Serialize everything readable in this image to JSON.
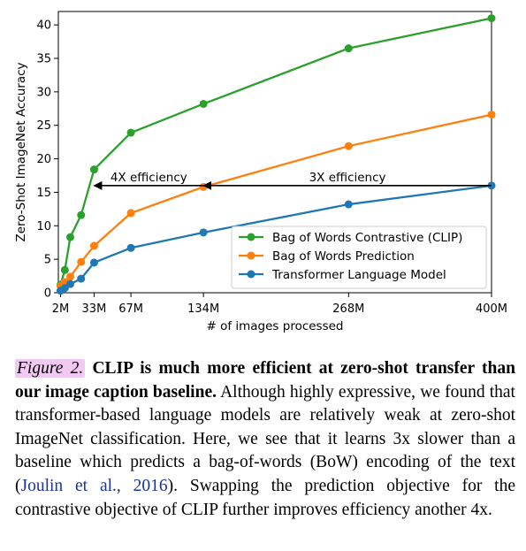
{
  "chart_data": {
    "type": "line",
    "xlabel": "# of images processed",
    "ylabel": "Zero-Shot ImageNet Accuracy",
    "xlim": [
      0,
      400
    ],
    "ylim": [
      0,
      42
    ],
    "x_ticks": [
      {
        "value": 2,
        "label": "2M"
      },
      {
        "value": 33,
        "label": "33M"
      },
      {
        "value": 67,
        "label": "67M"
      },
      {
        "value": 134,
        "label": "134M"
      },
      {
        "value": 268,
        "label": "268M"
      },
      {
        "value": 400,
        "label": "400M"
      }
    ],
    "y_ticks": [
      0,
      5,
      10,
      15,
      20,
      25,
      30,
      35,
      40
    ],
    "legend_position": "lower-right",
    "series": [
      {
        "name": "Bag of Words Contrastive (CLIP)",
        "color": "#2ca02c",
        "points": [
          [
            2,
            1.2
          ],
          [
            6,
            3.4
          ],
          [
            11,
            8.3
          ],
          [
            21,
            11.6
          ],
          [
            33,
            18.4
          ],
          [
            67,
            23.9
          ],
          [
            134,
            28.2
          ],
          [
            268,
            36.5
          ],
          [
            400,
            41.0
          ]
        ]
      },
      {
        "name": "Bag of Words Prediction",
        "color": "#ff7f0e",
        "points": [
          [
            2,
            1.0
          ],
          [
            6,
            1.6
          ],
          [
            11,
            2.4
          ],
          [
            21,
            4.6
          ],
          [
            33,
            7.0
          ],
          [
            67,
            11.9
          ],
          [
            134,
            15.8
          ],
          [
            268,
            21.9
          ],
          [
            400,
            26.6
          ]
        ]
      },
      {
        "name": "Transformer Language Model",
        "color": "#1f77b4",
        "points": [
          [
            2,
            0.3
          ],
          [
            6,
            0.7
          ],
          [
            11,
            1.3
          ],
          [
            21,
            2.1
          ],
          [
            33,
            4.5
          ],
          [
            67,
            6.7
          ],
          [
            134,
            9.0
          ],
          [
            268,
            13.2
          ],
          [
            400,
            16.0
          ]
        ]
      }
    ],
    "annotations": [
      {
        "text": "4X efficiency",
        "from": [
          134,
          16.0
        ],
        "to": [
          33,
          16.0
        ]
      },
      {
        "text": "3X efficiency",
        "from": [
          400,
          16.0
        ],
        "to": [
          134,
          16.0
        ]
      }
    ]
  },
  "caption": {
    "figure_label": "Figure 2.",
    "bold_text": "CLIP is much more efficient at zero-shot transfer than our image caption baseline.",
    "text_before_cite": "Although highly expressive, we found that transformer-based language models are relatively weak at zero-shot ImageNet classification. Here, we see that it learns 3x slower than a baseline which predicts a bag-of-words (BoW) encoding of the text (",
    "citation": "Joulin et al., 2016",
    "text_after_cite": "). Swapping the prediction objective for the contrastive objective of CLIP further improves efficiency another 4x."
  }
}
